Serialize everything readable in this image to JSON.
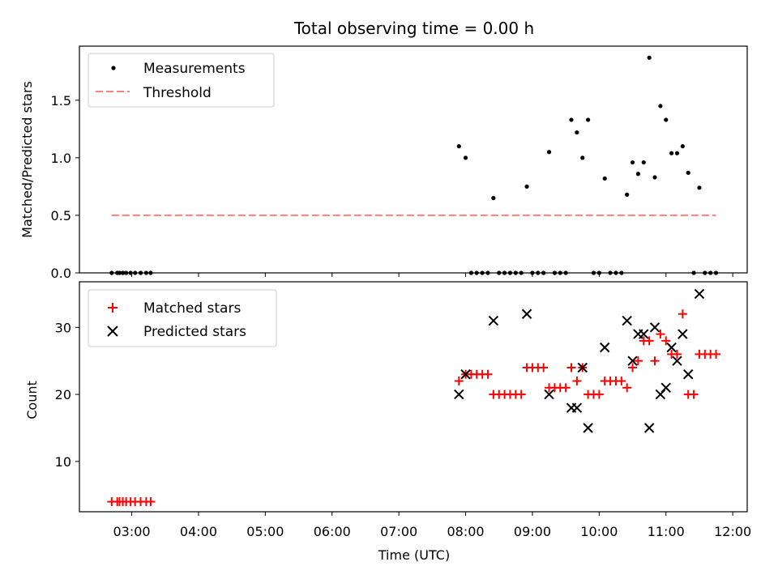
{
  "chart_data": [
    {
      "type": "scatter",
      "title": "Total observing time = 0.00 h",
      "ylabel": "Matched/Predicted stars",
      "xlabel": "",
      "x_unit": "time (UTC, HH:MM)",
      "ylim": [
        0,
        1.97
      ],
      "yticks": [
        "0.0",
        "0.5",
        "1.0",
        "1.5"
      ],
      "legend_position": "upper-left",
      "series": [
        {
          "name": "Measurements",
          "marker": "dot",
          "color": "#000000",
          "points": [
            [
              "02:42",
              0.0
            ],
            [
              "02:47",
              0.0
            ],
            [
              "02:49",
              0.0
            ],
            [
              "02:52",
              0.0
            ],
            [
              "02:55",
              0.0
            ],
            [
              "02:59",
              0.0
            ],
            [
              "03:03",
              0.0
            ],
            [
              "03:08",
              0.0
            ],
            [
              "03:13",
              0.0
            ],
            [
              "03:17",
              0.0
            ],
            [
              "07:54",
              1.1
            ],
            [
              "08:00",
              1.0
            ],
            [
              "08:05",
              0.0
            ],
            [
              "08:10",
              0.0
            ],
            [
              "08:15",
              0.0
            ],
            [
              "08:20",
              0.0
            ],
            [
              "08:25",
              0.65
            ],
            [
              "08:30",
              0.0
            ],
            [
              "08:35",
              0.0
            ],
            [
              "08:40",
              0.0
            ],
            [
              "08:45",
              0.0
            ],
            [
              "08:50",
              0.0
            ],
            [
              "08:55",
              0.75
            ],
            [
              "09:00",
              0.0
            ],
            [
              "09:05",
              0.0
            ],
            [
              "09:10",
              0.0
            ],
            [
              "09:15",
              1.05
            ],
            [
              "09:20",
              0.0
            ],
            [
              "09:25",
              0.0
            ],
            [
              "09:30",
              0.0
            ],
            [
              "09:35",
              1.33
            ],
            [
              "09:40",
              1.22
            ],
            [
              "09:45",
              1.0
            ],
            [
              "09:50",
              1.33
            ],
            [
              "09:55",
              0.0
            ],
            [
              "10:00",
              0.0
            ],
            [
              "10:05",
              0.82
            ],
            [
              "10:10",
              0.0
            ],
            [
              "10:15",
              0.0
            ],
            [
              "10:20",
              0.0
            ],
            [
              "10:25",
              0.68
            ],
            [
              "10:30",
              0.96
            ],
            [
              "10:35",
              0.86
            ],
            [
              "10:40",
              0.96
            ],
            [
              "10:45",
              1.87
            ],
            [
              "10:50",
              0.83
            ],
            [
              "10:55",
              1.45
            ],
            [
              "11:00",
              1.33
            ],
            [
              "11:05",
              1.04
            ],
            [
              "11:10",
              1.04
            ],
            [
              "11:15",
              1.1
            ],
            [
              "11:20",
              0.87
            ],
            [
              "11:25",
              0.0
            ],
            [
              "11:30",
              0.74
            ],
            [
              "11:35",
              0.0
            ],
            [
              "11:40",
              0.0
            ],
            [
              "11:45",
              0.0
            ]
          ]
        },
        {
          "name": "Threshold",
          "marker": "dashed-line",
          "color": "#ff7f7f",
          "x_range": [
            "02:42",
            "11:45"
          ],
          "value": 0.5
        }
      ]
    },
    {
      "type": "scatter",
      "title": "",
      "ylabel": "Count",
      "xlabel": "Time (UTC)",
      "x_unit": "time (UTC, HH:MM)",
      "ylim": [
        2.5,
        36.8
      ],
      "yticks": [
        "10",
        "20",
        "30"
      ],
      "xlim": [
        "02:13",
        "12:13"
      ],
      "xticks": [
        "03:00",
        "04:00",
        "05:00",
        "06:00",
        "07:00",
        "08:00",
        "09:00",
        "10:00",
        "11:00",
        "12:00"
      ],
      "legend_position": "upper-left",
      "series": [
        {
          "name": "Matched stars",
          "marker": "plus",
          "color": "#ff0000",
          "points": [
            [
              "02:42",
              4
            ],
            [
              "02:47",
              4
            ],
            [
              "02:49",
              4
            ],
            [
              "02:52",
              4
            ],
            [
              "02:55",
              4
            ],
            [
              "02:59",
              4
            ],
            [
              "03:03",
              4
            ],
            [
              "03:08",
              4
            ],
            [
              "03:13",
              4
            ],
            [
              "03:17",
              4
            ],
            [
              "07:54",
              22
            ],
            [
              "08:00",
              23
            ],
            [
              "08:05",
              23
            ],
            [
              "08:10",
              23
            ],
            [
              "08:15",
              23
            ],
            [
              "08:20",
              23
            ],
            [
              "08:25",
              20
            ],
            [
              "08:30",
              20
            ],
            [
              "08:35",
              20
            ],
            [
              "08:40",
              20
            ],
            [
              "08:45",
              20
            ],
            [
              "08:50",
              20
            ],
            [
              "08:55",
              24
            ],
            [
              "09:00",
              24
            ],
            [
              "09:05",
              24
            ],
            [
              "09:10",
              24
            ],
            [
              "09:15",
              21
            ],
            [
              "09:20",
              21
            ],
            [
              "09:25",
              21
            ],
            [
              "09:30",
              21
            ],
            [
              "09:35",
              24
            ],
            [
              "09:40",
              22
            ],
            [
              "09:45",
              24
            ],
            [
              "09:50",
              20
            ],
            [
              "09:55",
              20
            ],
            [
              "10:00",
              20
            ],
            [
              "10:05",
              22
            ],
            [
              "10:10",
              22
            ],
            [
              "10:15",
              22
            ],
            [
              "10:20",
              22
            ],
            [
              "10:25",
              21
            ],
            [
              "10:30",
              24
            ],
            [
              "10:35",
              25
            ],
            [
              "10:40",
              28
            ],
            [
              "10:45",
              28
            ],
            [
              "10:50",
              25
            ],
            [
              "10:55",
              29
            ],
            [
              "11:00",
              28
            ],
            [
              "11:05",
              26
            ],
            [
              "11:10",
              26
            ],
            [
              "11:15",
              32
            ],
            [
              "11:20",
              20
            ],
            [
              "11:25",
              20
            ],
            [
              "11:30",
              26
            ],
            [
              "11:35",
              26
            ],
            [
              "11:40",
              26
            ],
            [
              "11:45",
              26
            ]
          ]
        },
        {
          "name": "Predicted stars",
          "marker": "x",
          "color": "#000000",
          "points": [
            [
              "07:54",
              20
            ],
            [
              "08:00",
              23
            ],
            [
              "08:25",
              31
            ],
            [
              "08:55",
              32
            ],
            [
              "09:15",
              20
            ],
            [
              "09:35",
              18
            ],
            [
              "09:40",
              18
            ],
            [
              "09:45",
              24
            ],
            [
              "09:50",
              15
            ],
            [
              "10:05",
              27
            ],
            [
              "10:25",
              31
            ],
            [
              "10:30",
              25
            ],
            [
              "10:35",
              29
            ],
            [
              "10:40",
              29
            ],
            [
              "10:45",
              15
            ],
            [
              "10:50",
              30
            ],
            [
              "10:55",
              20
            ],
            [
              "11:00",
              21
            ],
            [
              "11:05",
              27
            ],
            [
              "11:10",
              25
            ],
            [
              "11:15",
              29
            ],
            [
              "11:20",
              23
            ],
            [
              "11:30",
              35
            ]
          ]
        }
      ]
    }
  ]
}
